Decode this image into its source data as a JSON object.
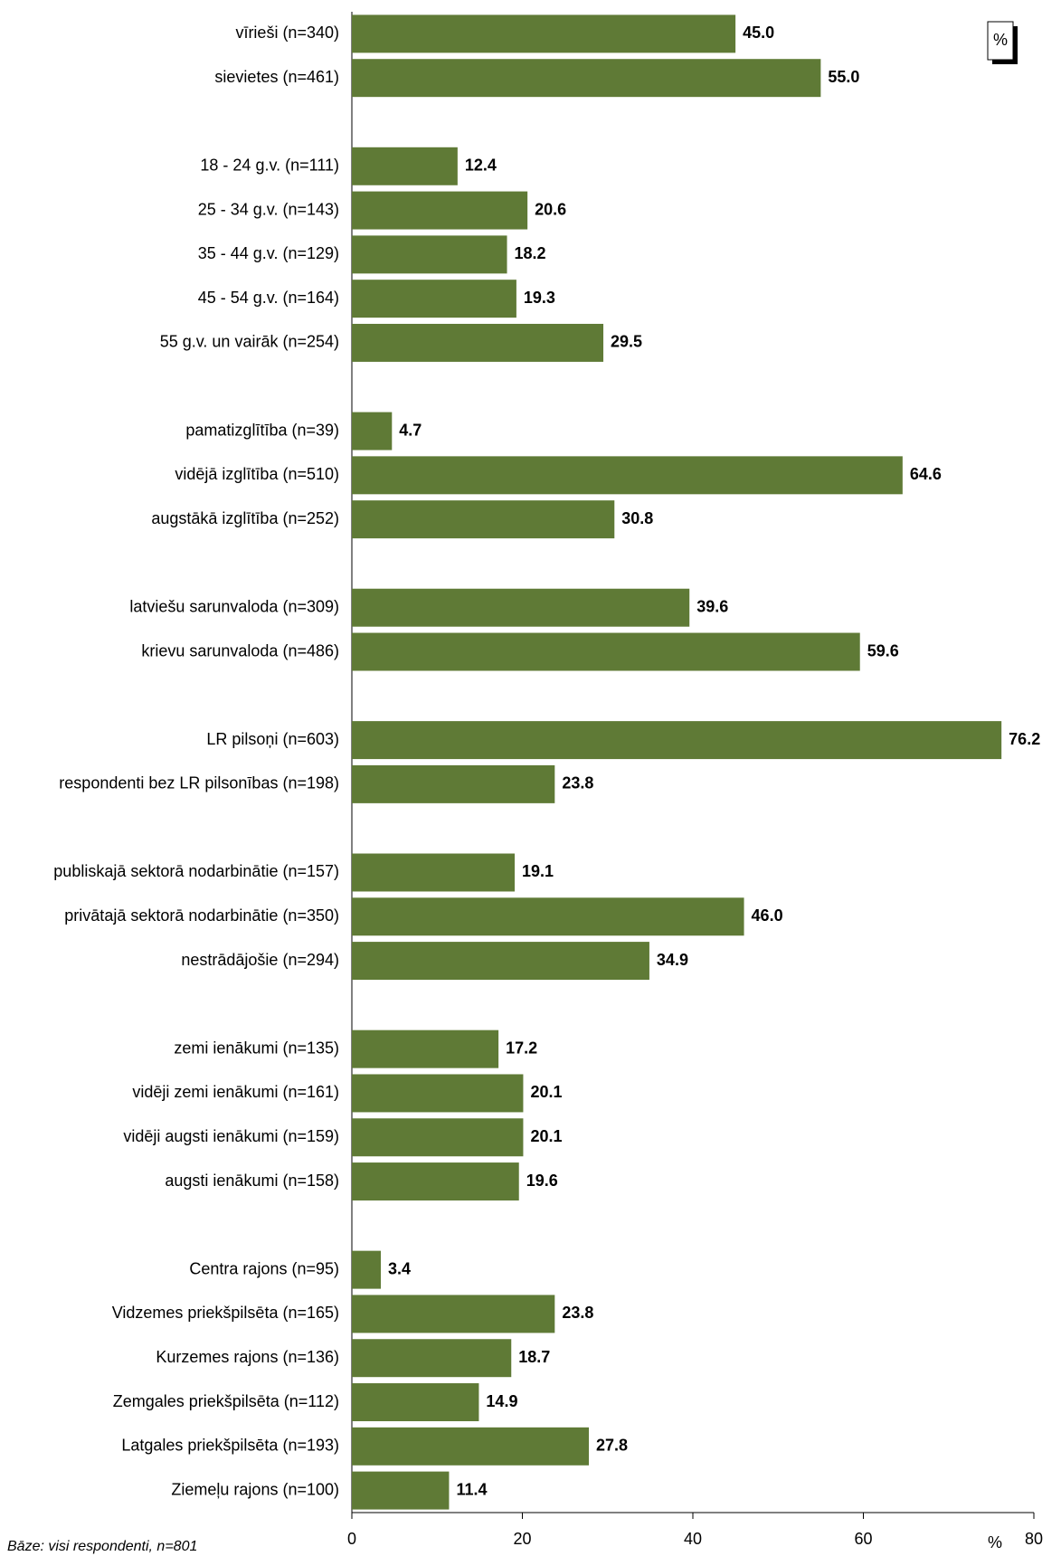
{
  "chart_data": {
    "type": "hbar",
    "categories": [
      "vīrieši (n=340)",
      "sievietes (n=461)",
      null,
      "18 - 24 g.v. (n=111)",
      "25 - 34 g.v. (n=143)",
      "35 - 44 g.v. (n=129)",
      "45 - 54 g.v. (n=164)",
      "55 g.v. un vairāk (n=254)",
      null,
      "pamatizglītība (n=39)",
      "vidējā izglītība (n=510)",
      "augstākā izglītība (n=252)",
      null,
      "latviešu sarunvaloda (n=309)",
      "krievu sarunvaloda (n=486)",
      null,
      "LR pilsoņi (n=603)",
      "respondenti bez LR pilsonības (n=198)",
      null,
      "publiskajā sektorā nodarbinātie (n=157)",
      "privātajā sektorā nodarbinātie (n=350)",
      "nestrādājošie (n=294)",
      null,
      "zemi ienākumi (n=135)",
      "vidēji zemi ienākumi (n=161)",
      "vidēji augsti ienākumi (n=159)",
      "augsti ienākumi (n=158)",
      null,
      "Centra rajons (n=95)",
      "Vidzemes priekšpilsēta (n=165)",
      "Kurzemes rajons (n=136)",
      "Zemgales priekšpilsēta (n=112)",
      "Latgales priekšpilsēta (n=193)",
      "Ziemeļu rajons (n=100)"
    ],
    "values": [
      45.0,
      55.0,
      null,
      12.4,
      20.6,
      18.2,
      19.3,
      29.5,
      null,
      4.7,
      64.6,
      30.8,
      null,
      39.6,
      59.6,
      null,
      76.2,
      23.8,
      null,
      19.1,
      46.0,
      34.9,
      null,
      17.2,
      20.1,
      20.1,
      19.6,
      null,
      3.4,
      23.8,
      18.7,
      14.9,
      27.8,
      11.4
    ],
    "value_labels": [
      "45.0",
      "55.0",
      null,
      "12.4",
      "20.6",
      "18.2",
      "19.3",
      "29.5",
      null,
      "4.7",
      "64.6",
      "30.8",
      null,
      "39.6",
      "59.6",
      null,
      "76.2",
      "23.8",
      null,
      "19.1",
      "46.0",
      "34.9",
      null,
      "17.2",
      "20.1",
      "20.1",
      "19.6",
      null,
      "3.4",
      "23.8",
      "18.7",
      "14.9",
      "27.8",
      "11.4"
    ],
    "color": "#5f7a36",
    "xlim": [
      0,
      80
    ],
    "xticks": [
      0,
      20,
      40,
      60,
      80
    ],
    "x_label": "%",
    "unit_badge": "%",
    "footnote": "Bāze: visi respondenti, n=801"
  }
}
